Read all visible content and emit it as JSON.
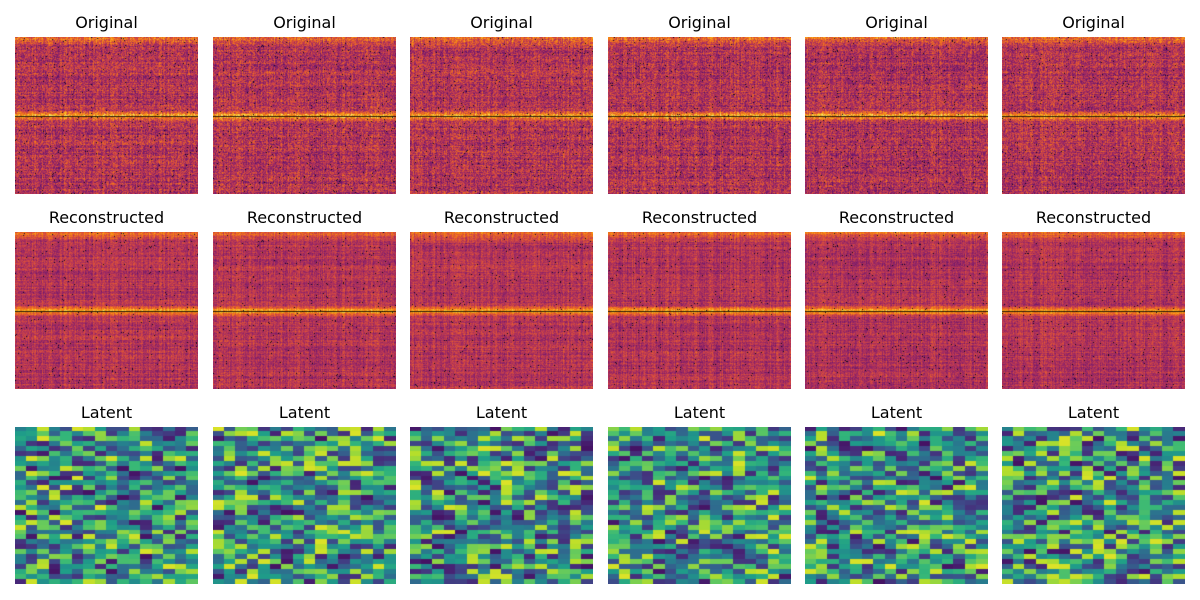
{
  "figure": {
    "rows": [
      {
        "key": "original",
        "title": "Original",
        "colormap": "inferno"
      },
      {
        "key": "reconstructed",
        "title": "Reconstructed",
        "colormap": "inferno"
      },
      {
        "key": "latent",
        "title": "Latent",
        "colormap": "viridis"
      }
    ],
    "columns": 6
  },
  "colors": {
    "background": "#ffffff",
    "title_text": "#000000"
  }
}
